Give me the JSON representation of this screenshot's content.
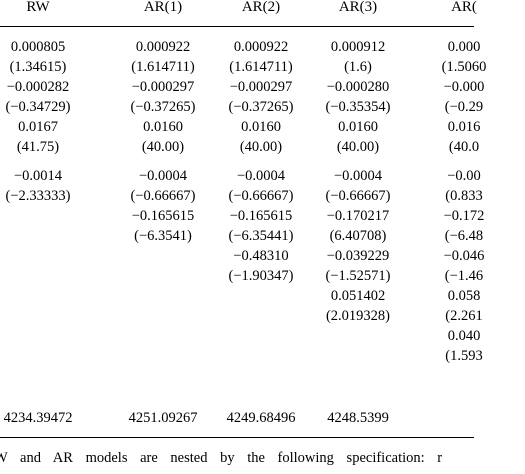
{
  "columns": [
    {
      "header": "RW",
      "cells": [
        {
          "row": 0,
          "text": "0.000805"
        },
        {
          "row": 1,
          "text": "(1.34615)"
        },
        {
          "row": 2,
          "text": "−0.000282"
        },
        {
          "row": 3,
          "text": "(−0.34729)"
        },
        {
          "row": 4,
          "text": "0.0167"
        },
        {
          "row": 5,
          "text": "(41.75)"
        },
        {
          "row": 6,
          "text": "−0.0014"
        },
        {
          "row": 7,
          "text": "(−2.33333)"
        }
      ],
      "loglik": "4234.39472"
    },
    {
      "header": "AR(1)",
      "cells": [
        {
          "row": 0,
          "text": "0.000922"
        },
        {
          "row": 1,
          "text": "(1.614711)"
        },
        {
          "row": 2,
          "text": "−0.000297"
        },
        {
          "row": 3,
          "text": "(−0.37265)"
        },
        {
          "row": 4,
          "text": "0.0160"
        },
        {
          "row": 5,
          "text": "(40.00)"
        },
        {
          "row": 6,
          "text": "−0.0004"
        },
        {
          "row": 7,
          "text": "(−0.66667)"
        },
        {
          "row": 8,
          "text": "−0.165615"
        },
        {
          "row": 9,
          "text": "(−6.3541)"
        }
      ],
      "loglik": "4251.09267"
    },
    {
      "header": "AR(2)",
      "cells": [
        {
          "row": 0,
          "text": "0.000922"
        },
        {
          "row": 1,
          "text": "(1.614711)"
        },
        {
          "row": 2,
          "text": "−0.000297"
        },
        {
          "row": 3,
          "text": "(−0.37265)"
        },
        {
          "row": 4,
          "text": "0.0160"
        },
        {
          "row": 5,
          "text": "(40.00)"
        },
        {
          "row": 6,
          "text": "−0.0004"
        },
        {
          "row": 7,
          "text": "(−0.66667)"
        },
        {
          "row": 8,
          "text": "−0.165615"
        },
        {
          "row": 9,
          "text": "(−6.35441)"
        },
        {
          "row": 10,
          "text": "−0.48310"
        },
        {
          "row": 11,
          "text": "(−1.90347)"
        }
      ],
      "loglik": "4249.68496"
    },
    {
      "header": "AR(3)",
      "cells": [
        {
          "row": 0,
          "text": "0.000912"
        },
        {
          "row": 1,
          "text": "(1.6)"
        },
        {
          "row": 2,
          "text": "−0.000280"
        },
        {
          "row": 3,
          "text": "(−0.35354)"
        },
        {
          "row": 4,
          "text": "0.0160"
        },
        {
          "row": 5,
          "text": "(40.00)"
        },
        {
          "row": 6,
          "text": "−0.0004"
        },
        {
          "row": 7,
          "text": "(−0.66667)"
        },
        {
          "row": 8,
          "text": "−0.170217"
        },
        {
          "row": 9,
          "text": "(6.40708)"
        },
        {
          "row": 10,
          "text": "−0.039229"
        },
        {
          "row": 11,
          "text": "(−1.52571)"
        },
        {
          "row": 12,
          "text": "0.051402"
        },
        {
          "row": 13,
          "text": "(2.019328)"
        }
      ],
      "loglik": "4248.5399"
    },
    {
      "header": "AR(",
      "cells": [
        {
          "row": 0,
          "text": "0.000"
        },
        {
          "row": 1,
          "text": "(1.5060"
        },
        {
          "row": 2,
          "text": "−0.000"
        },
        {
          "row": 3,
          "text": "(−0.29"
        },
        {
          "row": 4,
          "text": "0.016"
        },
        {
          "row": 5,
          "text": "(40.0"
        },
        {
          "row": 6,
          "text": "−0.00"
        },
        {
          "row": 7,
          "text": "(0.833"
        },
        {
          "row": 8,
          "text": "−0.172"
        },
        {
          "row": 9,
          "text": "(−6.48"
        },
        {
          "row": 10,
          "text": "−0.046"
        },
        {
          "row": 11,
          "text": "(−1.46"
        },
        {
          "row": 12,
          "text": "0.058"
        },
        {
          "row": 13,
          "text": "(2.261"
        },
        {
          "row": 14,
          "text": "0.040"
        },
        {
          "row": 15,
          "text": "(1.593"
        }
      ],
      "loglik": ""
    }
  ],
  "footnote": "W and AR models are nested by the following specification: r"
}
